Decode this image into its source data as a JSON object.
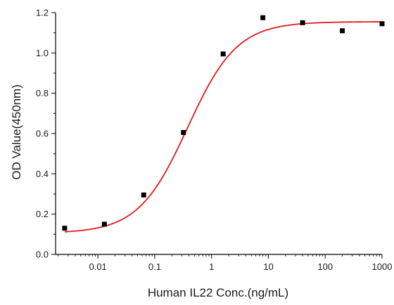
{
  "chart_data": {
    "type": "scatter",
    "title": "",
    "xlabel": "Human IL22 Conc.(ng/mL)",
    "ylabel": "OD Value(450nm)",
    "x_scale": "log",
    "xlim": [
      0.0018,
      1000
    ],
    "ylim": [
      0,
      1.2
    ],
    "grid": false,
    "x_ticks": [
      0.01,
      0.1,
      1,
      10,
      100,
      1000
    ],
    "x_tick_labels": [
      "0.01",
      "0.1",
      "1",
      "10",
      "100",
      "1000"
    ],
    "y_ticks": [
      0.0,
      0.2,
      0.4,
      0.6,
      0.8,
      1.0,
      1.2
    ],
    "y_tick_labels": [
      "0.0",
      "0.2",
      "0.4",
      "0.6",
      "0.8",
      "1.0",
      "1.2"
    ],
    "series": [
      {
        "marker": "square",
        "color": "#000000",
        "x": [
          0.0026,
          0.013,
          0.064,
          0.32,
          1.6,
          8,
          40,
          200,
          1000
        ],
        "y": [
          0.13,
          0.15,
          0.295,
          0.605,
          0.995,
          1.175,
          1.15,
          1.11,
          1.145
        ]
      }
    ],
    "fit_curve": {
      "model": "4PL",
      "color": "#e01b1b",
      "bottom": 0.105,
      "top": 1.155,
      "ec50": 0.38,
      "hill": 1.0,
      "x_range": [
        0.0026,
        1000
      ]
    }
  }
}
